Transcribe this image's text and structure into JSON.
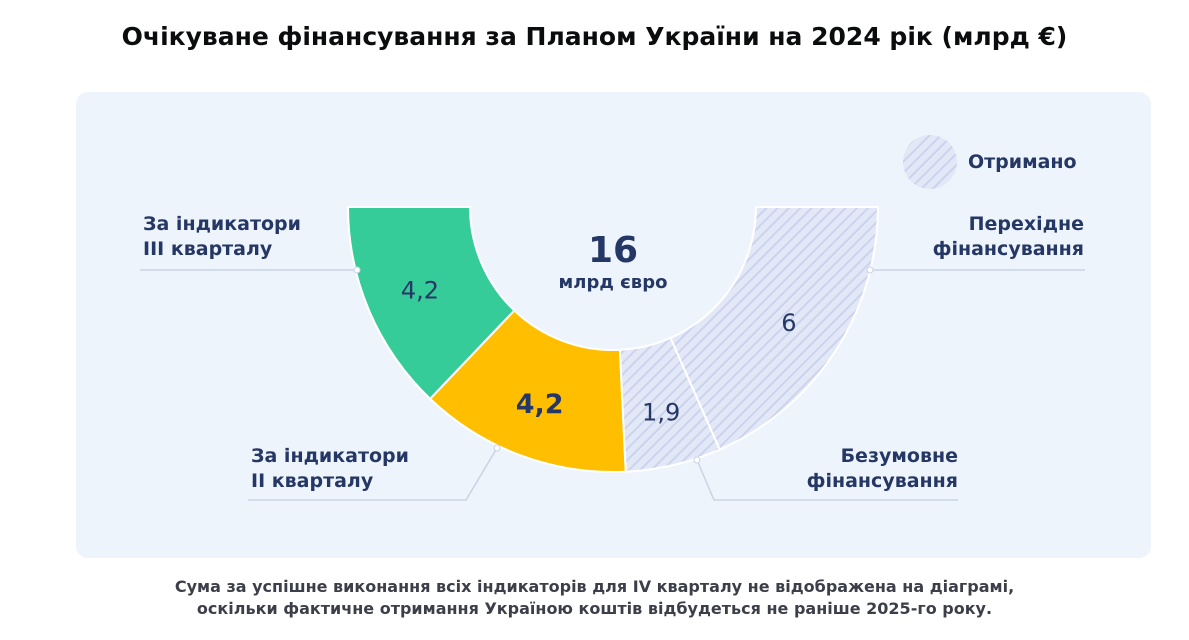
{
  "title": "Очікуване фінансування за Планом України на 2024 рік (млрд €)",
  "chart_data": {
    "type": "pie",
    "subtype": "half-donut",
    "title": "Очікуване фінансування за Планом України на 2024 рік (млрд €)",
    "total": {
      "value": "16",
      "unit": "млрд євро"
    },
    "segments": [
      {
        "name": "За індикатори III кварталу",
        "label_lines": [
          "За індикатори",
          "III кварталу"
        ],
        "value": 4.2,
        "display": "4,2",
        "color": "#36cc9a",
        "received": false
      },
      {
        "name": "За індикатори II кварталу",
        "label_lines": [
          "За індикатори",
          "II кварталу"
        ],
        "value": 4.2,
        "display": "4,2",
        "color": "#ffbf00",
        "received": false
      },
      {
        "name": "Безумовне фінансування",
        "label_lines": [
          "Безумовне",
          "фінансування"
        ],
        "value": 1.9,
        "display": "1,9",
        "color": "#dfe4f5",
        "received": true
      },
      {
        "name": "Перехідне фінансування",
        "label_lines": [
          "Перехідне",
          "фінансування"
        ],
        "value": 6,
        "display": "6",
        "color": "#dfe4f5",
        "received": true
      }
    ],
    "legend": {
      "label": "Отримано",
      "position": "top-right"
    }
  },
  "note_lines": [
    "Сума за успішне виконання всіх індикаторів для IV кварталу не відображена на діаграмі,",
    "оскільки фактичне отримання Україною коштів відбудеться не раніше 2025-го року."
  ],
  "colors": {
    "text": "#253765",
    "panel": "#eef4fb",
    "leader": "#c9d3e6",
    "hatch_stripe": "#c8d0ee"
  }
}
